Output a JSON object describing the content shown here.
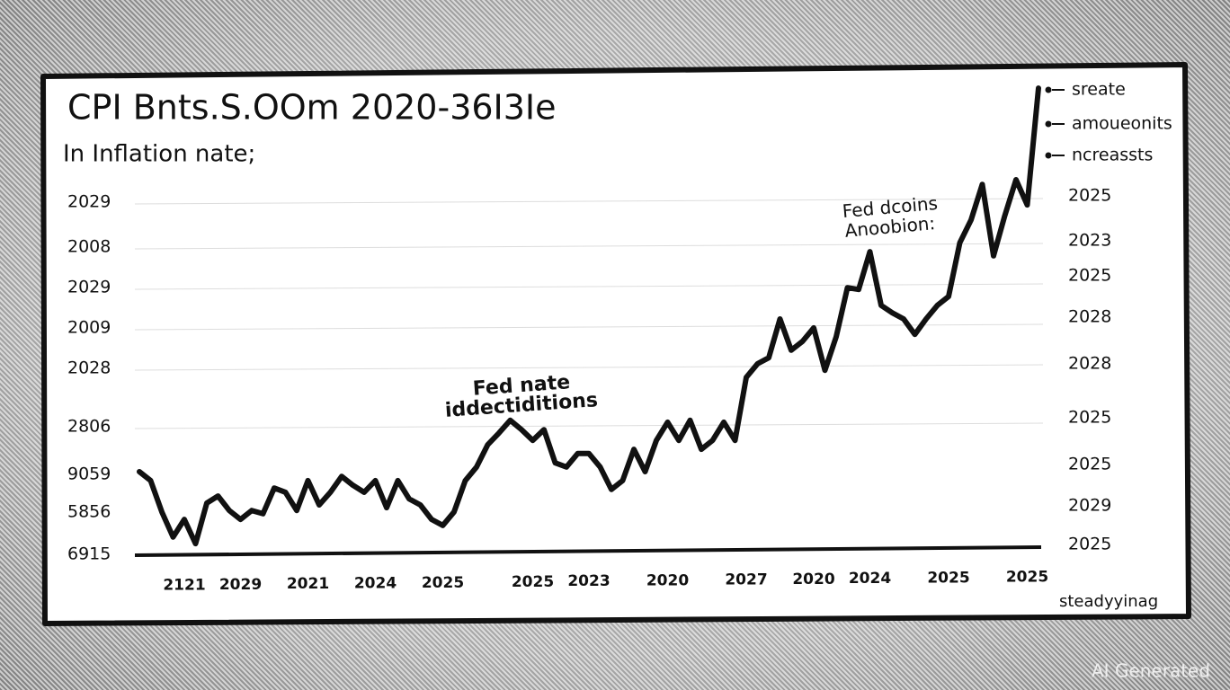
{
  "chart_data": {
    "type": "line",
    "title": "CPI Bnts.S.OOm 2020-36I3Ie",
    "subtitle": "In Inflation nate;",
    "categories": [
      null,
      null,
      null,
      null,
      "2121",
      null,
      null,
      null,
      null,
      "2029",
      null,
      null,
      null,
      null,
      null,
      "2021",
      null,
      null,
      null,
      null,
      null,
      "2024",
      null,
      null,
      null,
      null,
      null,
      "2025",
      null,
      null,
      null,
      null,
      null,
      null,
      null,
      "2025",
      null,
      null,
      null,
      null,
      "2023",
      null,
      null,
      null,
      null,
      null,
      null,
      "2020",
      null,
      null,
      null,
      null,
      null,
      null,
      "2027",
      null,
      null,
      null,
      null,
      null,
      "2020",
      null,
      null,
      null,
      null,
      "2024",
      null,
      null,
      null,
      null,
      null,
      null,
      "2025",
      null,
      null,
      null,
      null,
      null,
      null,
      "2025",
      null
    ],
    "values": [
      17.3,
      15.4,
      8.7,
      3.3,
      7.1,
      1.9,
      10.6,
      12.1,
      9.0,
      7.1,
      9.0,
      8.3,
      13.8,
      12.9,
      9.0,
      15.4,
      10.2,
      12.9,
      16.3,
      14.4,
      12.9,
      15.4,
      9.6,
      15.4,
      11.5,
      10.2,
      7.1,
      5.8,
      8.7,
      15.4,
      18.3,
      23.1,
      25.6,
      28.3,
      26.3,
      24.0,
      26.3,
      19.2,
      18.3,
      21.2,
      21.2,
      18.3,
      13.5,
      15.4,
      22.1,
      17.3,
      24.0,
      27.9,
      24.0,
      28.3,
      22.1,
      24.0,
      27.9,
      24.0,
      37.5,
      40.4,
      41.7,
      50.0,
      43.3,
      45.2,
      48.1,
      39.0,
      46.2,
      56.7,
      56.3,
      64.4,
      52.9,
      51.3,
      50.0,
      46.7,
      50.0,
      52.9,
      54.8,
      66.3,
      71.2,
      78.8,
      63.5,
      72.1,
      79.8,
      74.4,
      99.4
    ],
    "ylim": [
      0,
      100
    ],
    "color": "#111111",
    "left_axis_labels": [
      "2029",
      "2008",
      "2029",
      "2009",
      "2028",
      "2806",
      "9059",
      "5856",
      "6915"
    ],
    "right_axis_labels": [
      "2025",
      "2023",
      "2025",
      "2028",
      "2028",
      "2025",
      "2025",
      "2029",
      "2025"
    ],
    "legend": [
      "sreate",
      "amoueonits",
      "ncreassts"
    ],
    "annotations": [
      [
        "Fed nate",
        "iddectiditions"
      ],
      [
        "Fed dcoins",
        "Anoobion:"
      ]
    ],
    "credit": "steadyyinag",
    "watermark": "AI Generated"
  }
}
